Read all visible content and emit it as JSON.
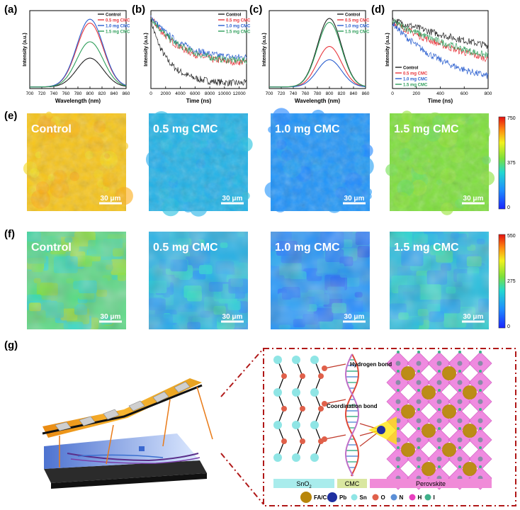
{
  "panel_labels": {
    "a": "(a)",
    "b": "(b)",
    "c": "(c)",
    "d": "(d)",
    "e": "(e)",
    "f": "(f)",
    "g": "(g)"
  },
  "legend": [
    "Control",
    "0.5 mg CMC",
    "1.0 mg CMC",
    "1.5 mg CMC"
  ],
  "colors": {
    "Control": "#222222",
    "0.5 mg CMC": "#e8353b",
    "1.0 mg CMC": "#2b5fcf",
    "1.5 mg CMC": "#2e9e5a"
  },
  "chart_data": [
    {
      "id": "a",
      "type": "line",
      "xlabel": "Wavelength (nm)",
      "ylabel": "Intensity (a.u.)",
      "xlim": [
        700,
        860
      ],
      "xticks": [
        700,
        720,
        740,
        760,
        780,
        800,
        820,
        840,
        860
      ],
      "center": 800,
      "sigma": 22,
      "series": [
        {
          "name": "Control",
          "peak": 0.37
        },
        {
          "name": "0.5 mg CMC",
          "peak": 0.82
        },
        {
          "name": "1.0 mg CMC",
          "peak": 0.87
        },
        {
          "name": "1.5 mg CMC",
          "peak": 0.58
        }
      ]
    },
    {
      "id": "b",
      "type": "line",
      "xlabel": "Time (ns)",
      "ylabel": "Intensity (a.u.)",
      "xlim": [
        0,
        13000
      ],
      "xticks": [
        0,
        2000,
        4000,
        6000,
        8000,
        10000,
        12000
      ],
      "series": [
        {
          "name": "Control",
          "start": 0.88,
          "end": 0.07
        },
        {
          "name": "0.5 mg CMC",
          "start": 0.92,
          "end": 0.34
        },
        {
          "name": "1.0 mg CMC",
          "start": 0.93,
          "end": 0.4
        },
        {
          "name": "1.5 mg CMC",
          "start": 0.92,
          "end": 0.36
        }
      ]
    },
    {
      "id": "c",
      "type": "line",
      "xlabel": "Wavelength (nm)",
      "ylabel": "Intensity (a.u.)",
      "xlim": [
        700,
        860
      ],
      "xticks": [
        700,
        720,
        740,
        760,
        780,
        800,
        820,
        840,
        860
      ],
      "center": 800,
      "sigma": 20,
      "series": [
        {
          "name": "Control",
          "peak": 0.88
        },
        {
          "name": "0.5 mg CMC",
          "peak": 0.52
        },
        {
          "name": "1.0 mg CMC",
          "peak": 0.35
        },
        {
          "name": "1.5 mg CMC",
          "peak": 0.83
        }
      ]
    },
    {
      "id": "d",
      "type": "line",
      "xlabel": "Time (ns)",
      "ylabel": "Intensity (a.u.)",
      "xlim": [
        0,
        800
      ],
      "xticks": [
        0,
        200,
        400,
        600,
        800
      ],
      "series": [
        {
          "name": "Control",
          "start": 0.88,
          "end": 0.55
        },
        {
          "name": "0.5 mg CMC",
          "start": 0.85,
          "end": 0.38
        },
        {
          "name": "1.0 mg CMC",
          "start": 0.84,
          "end": 0.16
        },
        {
          "name": "1.5 mg CMC",
          "start": 0.86,
          "end": 0.42
        }
      ]
    },
    {
      "id": "e",
      "type": "heatmap",
      "labels": [
        "Control",
        "0.5 mg CMC",
        "1.0 mg CMC",
        "1.5 mg CMC"
      ],
      "levels": [
        0.78,
        0.3,
        0.22,
        0.55
      ],
      "scale_bar": "30 μm",
      "colorbar": {
        "ticks": [
          "750",
          "375",
          "0"
        ]
      }
    },
    {
      "id": "f",
      "type": "heatmap",
      "labels": [
        "Control",
        "0.5 mg CMC",
        "1.0 mg CMC",
        "1.5 mg CMC"
      ],
      "levels": [
        0.48,
        0.3,
        0.22,
        0.33
      ],
      "scale_bar": "30 μm",
      "colorbar": {
        "ticks": [
          "550",
          "275",
          "0"
        ]
      }
    }
  ],
  "schematic": {
    "labels": {
      "hydrogen_bond": "Hydrogen bond",
      "coordination_bond": "Coordination bond",
      "sno2": "SnO",
      "sno2_sub": "2",
      "cmc": "CMC",
      "perovskite": "Perovskite"
    },
    "key": [
      {
        "name": "FA/Cs",
        "color": "#b8860b"
      },
      {
        "name": "Pb",
        "color": "#1f2fa0"
      },
      {
        "name": "Sn",
        "color": "#8fe5e5"
      },
      {
        "name": "O",
        "color": "#e0604a"
      },
      {
        "name": "N",
        "color": "#5b8fd6"
      },
      {
        "name": "H",
        "color": "#e83fbf"
      },
      {
        "name": "I",
        "color": "#3fb08a"
      }
    ]
  }
}
